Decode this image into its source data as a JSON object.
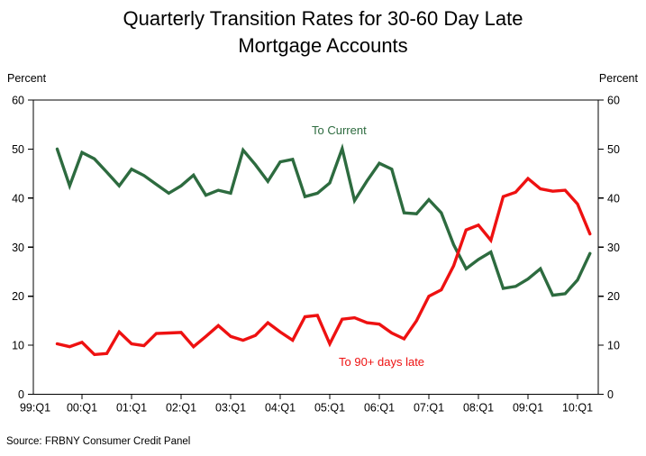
{
  "title": {
    "line1": "Quarterly Transition Rates for 30-60 Day Late",
    "line2": "Mortgage Accounts"
  },
  "y_axis": {
    "unit_label_left": "Percent",
    "unit_label_right": "Percent"
  },
  "annotations": {
    "current_label": "To Current",
    "late_label": "To 90+ days late"
  },
  "source_note": "Source: FRBNY Consumer Credit Panel",
  "colors": {
    "current": "#2d6b3f",
    "late": "#ee1111",
    "axis": "#000000"
  },
  "chart_data": {
    "type": "line",
    "title": "Quarterly Transition Rates for 30-60 Day Late Mortgage Accounts",
    "xlabel": "",
    "ylabel": "Percent",
    "ylim": [
      0,
      60
    ],
    "grid": false,
    "legend_position": "inline-annotations",
    "y_tick_labels": [
      "0",
      "10",
      "20",
      "30",
      "40",
      "50",
      "60"
    ],
    "x_tick_labels": [
      "99:Q1",
      "00:Q1",
      "01:Q1",
      "02:Q1",
      "03:Q1",
      "04:Q1",
      "05:Q1",
      "06:Q1",
      "07:Q1",
      "08:Q1",
      "09:Q1",
      "10:Q1"
    ],
    "x": [
      "99:Q3",
      "99:Q4",
      "00:Q1",
      "00:Q2",
      "00:Q3",
      "00:Q4",
      "01:Q1",
      "01:Q2",
      "01:Q3",
      "01:Q4",
      "02:Q1",
      "02:Q2",
      "02:Q3",
      "02:Q4",
      "03:Q1",
      "03:Q2",
      "03:Q3",
      "03:Q4",
      "04:Q1",
      "04:Q2",
      "04:Q3",
      "04:Q4",
      "05:Q1",
      "05:Q2",
      "05:Q3",
      "05:Q4",
      "06:Q1",
      "06:Q2",
      "06:Q3",
      "06:Q4",
      "07:Q1",
      "07:Q2",
      "07:Q3",
      "07:Q4",
      "08:Q1",
      "08:Q2",
      "08:Q3",
      "08:Q4",
      "09:Q1",
      "09:Q2",
      "09:Q3",
      "09:Q4",
      "10:Q1",
      "10:Q2"
    ],
    "series": [
      {
        "name": "To Current",
        "color": "#2d6b3f",
        "values": [
          50.0,
          42.5,
          49.3,
          48.0,
          45.3,
          42.5,
          45.9,
          44.6,
          42.8,
          41.0,
          42.5,
          44.7,
          40.6,
          41.6,
          41.0,
          49.8,
          46.8,
          43.4,
          47.4,
          47.9,
          40.3,
          41.0,
          43.1,
          50.1,
          39.5,
          43.5,
          47.1,
          45.9,
          37.0,
          36.8,
          39.7,
          37.0,
          30.5,
          25.6,
          27.5,
          29.0,
          21.6,
          22.0,
          23.5,
          25.6,
          20.2,
          20.5,
          23.3,
          28.7
        ]
      },
      {
        "name": "To 90+ days late",
        "color": "#ee1111",
        "values": [
          10.3,
          9.7,
          10.6,
          8.1,
          8.3,
          12.7,
          10.3,
          9.9,
          12.4,
          12.5,
          12.6,
          9.7,
          11.8,
          14.0,
          11.8,
          11.0,
          12.0,
          14.6,
          12.7,
          11.0,
          15.8,
          16.1,
          10.3,
          15.3,
          15.6,
          14.6,
          14.3,
          12.5,
          11.3,
          15.0,
          20.0,
          21.3,
          26.2,
          33.5,
          34.5,
          31.4,
          40.3,
          41.2,
          44.0,
          41.9,
          41.4,
          41.6,
          38.8,
          32.7
        ]
      }
    ]
  }
}
